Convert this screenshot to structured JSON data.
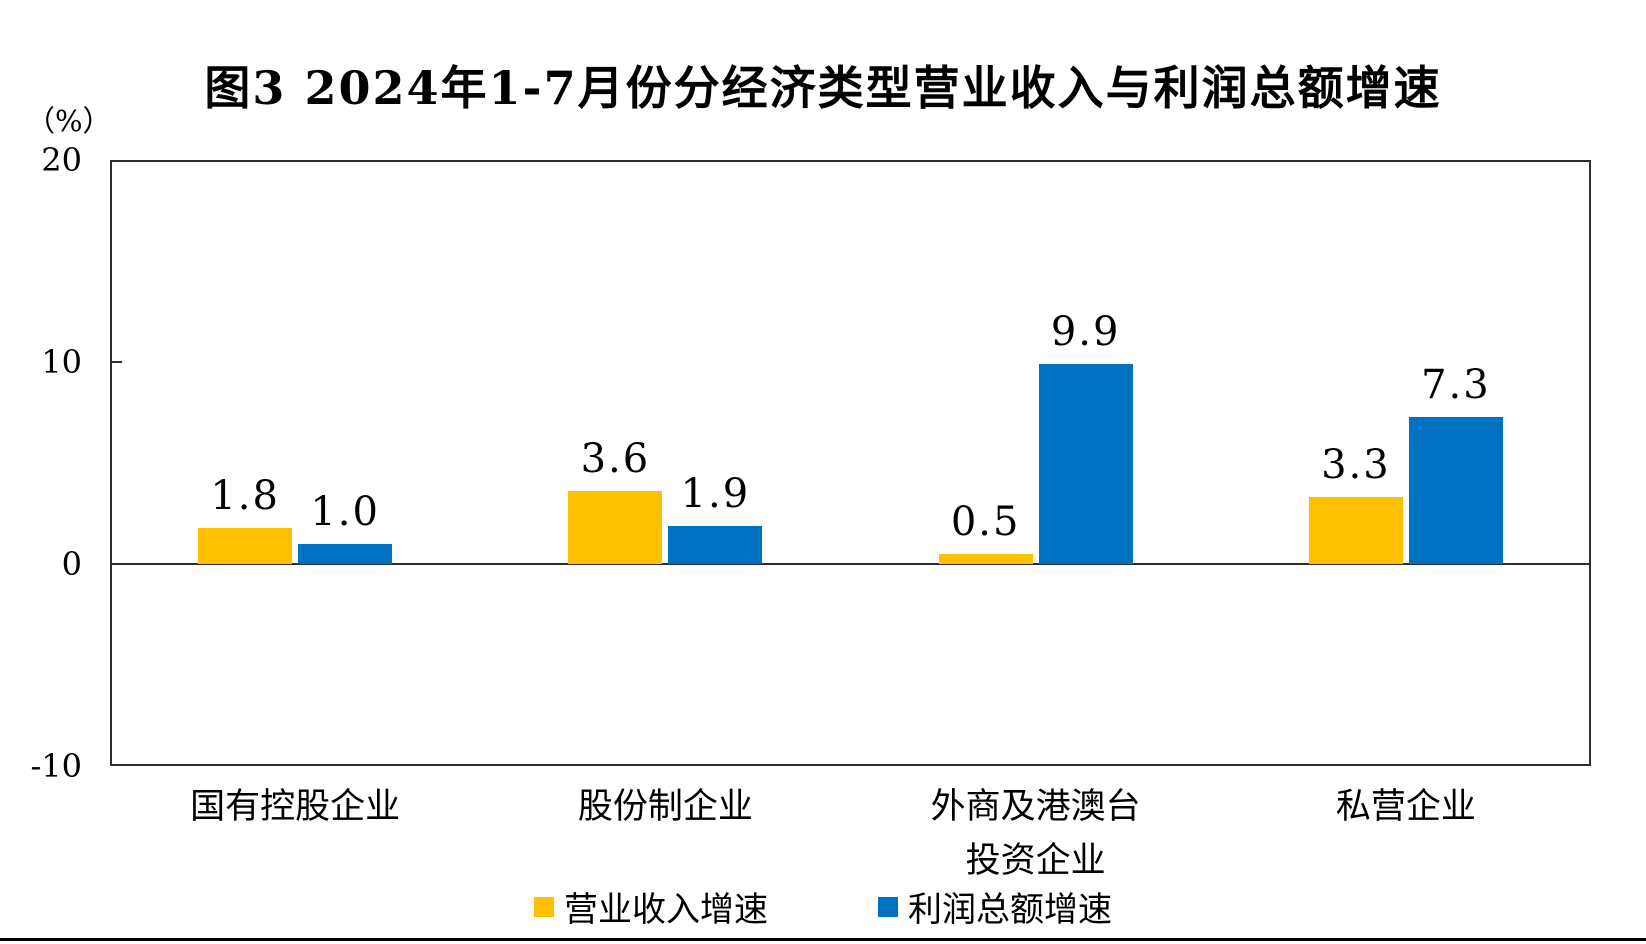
{
  "title": "图3 2024年1-7月份分经济类型营业收入与利润总额增速",
  "unit_label": "（%）",
  "colors": {
    "revenue_series": "#FFC000",
    "profit_series": "#0070C0",
    "axis": "#2e2e2e",
    "text": "#000000",
    "background": "#ffffff"
  },
  "chart_data": {
    "type": "bar",
    "title": "图3 2024年1-7月份分经济类型营业收入与利润总额增速",
    "ylabel": "（%）",
    "xlabel": "",
    "ylim": [
      -10,
      20
    ],
    "yticks": [
      20,
      10,
      0,
      -10
    ],
    "grid": false,
    "legend_position": "bottom",
    "categories": [
      "国有控股企业",
      "股份制企业",
      "外商及港澳台\n投资企业",
      "私营企业"
    ],
    "series": [
      {
        "name": "营业收入增速",
        "color": "#FFC000",
        "values": [
          1.8,
          3.6,
          0.5,
          3.3
        ]
      },
      {
        "name": "利润总额增速",
        "color": "#0070C0",
        "values": [
          1.0,
          1.9,
          9.9,
          7.3
        ]
      }
    ]
  }
}
